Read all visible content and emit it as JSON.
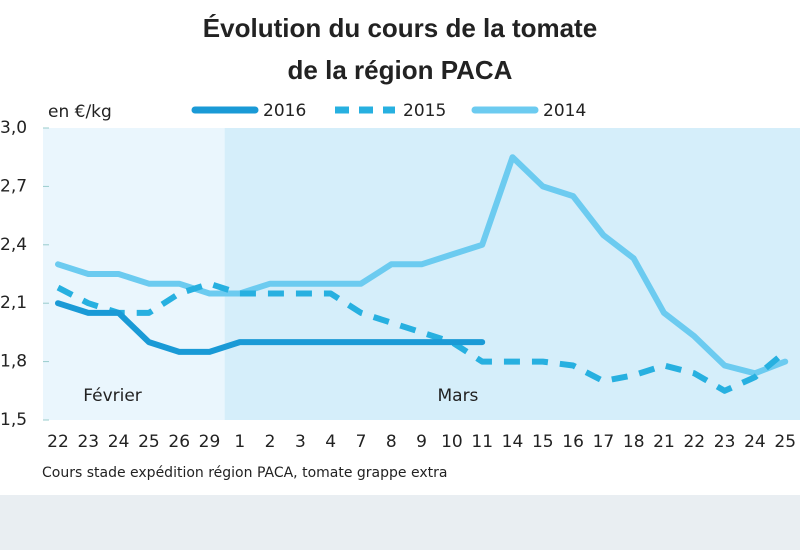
{
  "chart_data": {
    "type": "line",
    "title": "Évolution du cours de la tomate",
    "subtitle": "de la région PACA",
    "y_label": "en €/kg",
    "note": "Cours stade expédition région  PACA, tomate grappe extra",
    "annotations": [
      "Février",
      "Mars"
    ],
    "categories": [
      "22",
      "23",
      "24",
      "25",
      "26",
      "29",
      "1",
      "2",
      "3",
      "4",
      "7",
      "8",
      "9",
      "10",
      "11",
      "14",
      "15",
      "16",
      "17",
      "18",
      "21",
      "22",
      "23",
      "24",
      "25"
    ],
    "series": [
      {
        "name": "2016",
        "color": "#1a9ad6",
        "dash": false,
        "values": [
          2.1,
          2.05,
          2.05,
          1.9,
          1.85,
          1.85,
          1.9,
          1.9,
          1.9,
          1.9,
          1.9,
          1.9,
          1.9,
          1.9,
          1.9,
          null,
          null,
          null,
          null,
          null,
          null,
          null,
          null,
          null,
          null
        ]
      },
      {
        "name": "2015",
        "color": "#27b0e0",
        "dash": true,
        "values": [
          2.18,
          2.1,
          2.05,
          2.05,
          2.15,
          2.2,
          2.15,
          2.15,
          2.15,
          2.15,
          2.05,
          2.0,
          1.95,
          1.9,
          1.8,
          1.8,
          1.8,
          1.78,
          1.7,
          1.73,
          1.78,
          1.74,
          1.65,
          1.72,
          1.85
        ]
      },
      {
        "name": "2014",
        "color": "#6ccbf0",
        "dash": false,
        "values": [
          2.3,
          2.25,
          2.25,
          2.2,
          2.2,
          2.15,
          2.15,
          2.2,
          2.2,
          2.2,
          2.2,
          2.3,
          2.3,
          2.35,
          2.4,
          2.85,
          2.7,
          2.65,
          2.45,
          2.33,
          2.05,
          1.93,
          1.78,
          1.74,
          1.8
        ]
      }
    ],
    "ylim": [
      1.5,
      3.0
    ],
    "yticks": [
      {
        "value": 1.5,
        "label": "1,5"
      },
      {
        "value": 1.8,
        "label": "1,8"
      },
      {
        "value": 2.1,
        "label": "2,1"
      },
      {
        "value": 2.4,
        "label": "2,4"
      },
      {
        "value": 2.7,
        "label": "2,7"
      },
      {
        "value": 3.0,
        "label": "3,0"
      }
    ]
  }
}
